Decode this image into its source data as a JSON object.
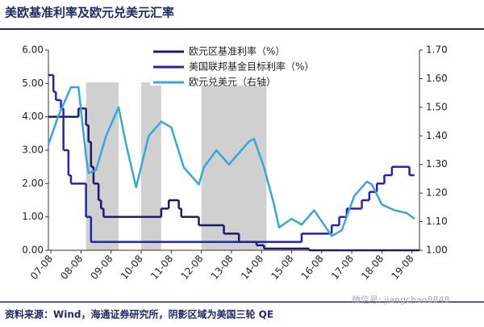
{
  "chart_data": {
    "type": "line",
    "title": "美欧基准利率及欧元兑美元汇率",
    "source": "资料来源：Wind，海通证券研究所，阴影区域为美国三轮 QE",
    "watermark": "微信号: jiangchao8848",
    "step": true,
    "xlim": [
      "07-07",
      "19-11"
    ],
    "xticks": [
      "07-08",
      "08-08",
      "09-08",
      "10-08",
      "11-08",
      "12-08",
      "13-08",
      "14-08",
      "15-08",
      "16-08",
      "17-08",
      "18-08",
      "19-08"
    ],
    "ylim": [
      0,
      6
    ],
    "yticks": [
      {
        "value": 0,
        "label": "0.00"
      },
      {
        "value": 1,
        "label": "1.00"
      },
      {
        "value": 2,
        "label": "2.00"
      },
      {
        "value": 3,
        "label": "3.00"
      },
      {
        "value": 4,
        "label": "4.00"
      },
      {
        "value": 5,
        "label": "5.00"
      },
      {
        "value": 6,
        "label": "6.00"
      }
    ],
    "y2lim": [
      1.0,
      1.7
    ],
    "y2ticks": [
      {
        "value": 1.0,
        "label": "1.00"
      },
      {
        "value": 1.1,
        "label": "1.10"
      },
      {
        "value": 1.2,
        "label": "1.20"
      },
      {
        "value": 1.3,
        "label": "1.30"
      },
      {
        "value": 1.4,
        "label": "1.40"
      },
      {
        "value": 1.5,
        "label": "1.50"
      },
      {
        "value": 1.6,
        "label": "1.60"
      },
      {
        "value": 1.7,
        "label": "1.70"
      }
    ],
    "shade_color": "#d0d0d0",
    "shaded_periods": [
      [
        "08-10",
        "09-11"
      ],
      [
        "10-08",
        "11-04"
      ],
      [
        "12-08",
        "14-10"
      ]
    ],
    "series": [
      {
        "name": "欧元区基准利率（%）",
        "color": "#1b1b6b",
        "step": true,
        "x": [
          "07-07",
          "08-07",
          "08-10",
          "08-11",
          "08-12",
          "09-01",
          "09-03",
          "09-04",
          "09-05",
          "11-04",
          "11-07",
          "11-11",
          "11-12",
          "12-07",
          "13-05",
          "13-11",
          "14-06",
          "14-09",
          "16-03",
          "19-11"
        ],
        "values": [
          4.0,
          4.25,
          3.75,
          3.25,
          2.5,
          2.0,
          1.5,
          1.25,
          1.0,
          1.25,
          1.5,
          1.25,
          1.0,
          0.75,
          0.5,
          0.25,
          0.15,
          0.05,
          0.0,
          0.0
        ]
      },
      {
        "name": "美国联邦基金目标利率（%）",
        "color": "#2424a8",
        "step": true,
        "x": [
          "07-07",
          "07-09",
          "07-10",
          "07-12",
          "08-01",
          "08-03",
          "08-04",
          "08-10",
          "08-12",
          "15-12",
          "16-12",
          "17-03",
          "17-06",
          "17-12",
          "18-03",
          "18-06",
          "18-09",
          "18-12",
          "19-07",
          "19-09"
        ],
        "values": [
          5.25,
          4.75,
          4.5,
          4.25,
          3.0,
          2.25,
          2.0,
          1.0,
          0.25,
          0.5,
          0.75,
          1.0,
          1.25,
          1.5,
          1.75,
          2.0,
          2.25,
          2.5,
          2.25,
          2.25
        ]
      },
      {
        "name": "欧元兑美元（右轴）",
        "color": "#3aa6d6",
        "axis": "y2",
        "step": false,
        "x": [
          "07-07",
          "07-11",
          "08-04",
          "08-07",
          "08-10",
          "08-11",
          "09-02",
          "09-06",
          "09-11",
          "10-02",
          "10-06",
          "10-11",
          "11-04",
          "11-08",
          "12-01",
          "12-07",
          "12-09",
          "13-02",
          "13-07",
          "14-03",
          "14-05",
          "14-09",
          "15-01",
          "15-03",
          "15-08",
          "15-12",
          "16-05",
          "16-12",
          "17-04",
          "17-09",
          "18-02",
          "18-04",
          "18-08",
          "19-01",
          "19-06",
          "19-09"
        ],
        "values": [
          1.37,
          1.47,
          1.57,
          1.57,
          1.33,
          1.27,
          1.28,
          1.4,
          1.5,
          1.37,
          1.22,
          1.4,
          1.45,
          1.43,
          1.29,
          1.23,
          1.29,
          1.35,
          1.3,
          1.38,
          1.39,
          1.29,
          1.16,
          1.08,
          1.11,
          1.09,
          1.14,
          1.05,
          1.07,
          1.19,
          1.24,
          1.23,
          1.16,
          1.14,
          1.13,
          1.11
        ]
      }
    ]
  }
}
